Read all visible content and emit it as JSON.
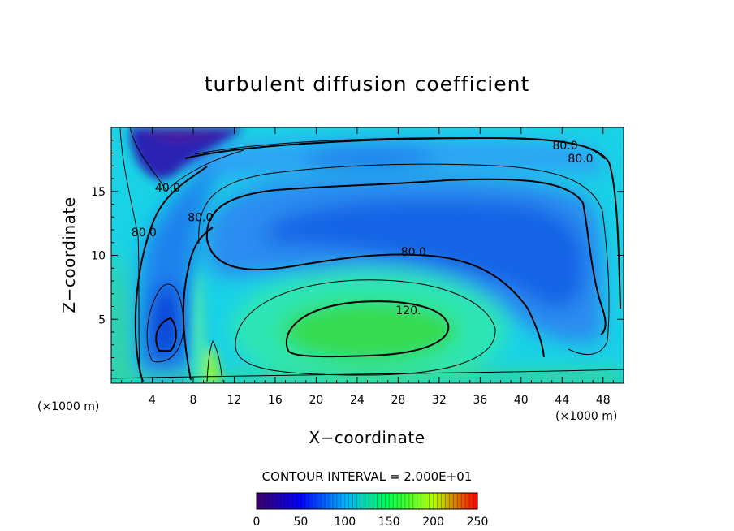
{
  "chart_data": {
    "type": "heatmap",
    "title": "turbulent diffusion coefficient",
    "xlabel": "X−coordinate",
    "ylabel": "Z−coordinate",
    "x_unit": "(×1000 m)",
    "y_unit": "(×1000 m)",
    "xlim": [
      0,
      50
    ],
    "ylim": [
      0,
      20
    ],
    "x_ticks": [
      4,
      8,
      12,
      16,
      20,
      24,
      28,
      32,
      36,
      40,
      44,
      48
    ],
    "y_ticks": [
      5,
      10,
      15
    ],
    "contour_interval_text": "CONTOUR INTERVAL = 2.000E+01",
    "contour_labels": [
      {
        "text": "80.0",
        "x": 44.3,
        "y": 18.6
      },
      {
        "text": "80.0",
        "x": 45.8,
        "y": 17.6
      },
      {
        "text": "40.0",
        "x": 5.5,
        "y": 15.3
      },
      {
        "text": "80.0",
        "x": 8.7,
        "y": 13.0
      },
      {
        "text": "80.0",
        "x": 3.2,
        "y": 11.8
      },
      {
        "text": "80.0",
        "x": 29.5,
        "y": 10.3
      },
      {
        "text": "120.",
        "x": 29.0,
        "y": 5.7
      }
    ],
    "colorbar": {
      "min": 0,
      "max": 250,
      "tick_labels": [
        "0",
        "50",
        "100",
        "150",
        "200",
        "250"
      ],
      "colors": [
        "#3c006a",
        "#0000ff",
        "#00b4ff",
        "#00ff50",
        "#b4ff00",
        "#ff0000"
      ]
    },
    "colors": {
      "low": "#3a00b0",
      "mid_low": "#0a64f0",
      "mid": "#19c8f0",
      "mid_high": "#32f0a0",
      "high": "#3cdc3c",
      "peak": "#a0ff28",
      "contour": "#000000"
    }
  }
}
